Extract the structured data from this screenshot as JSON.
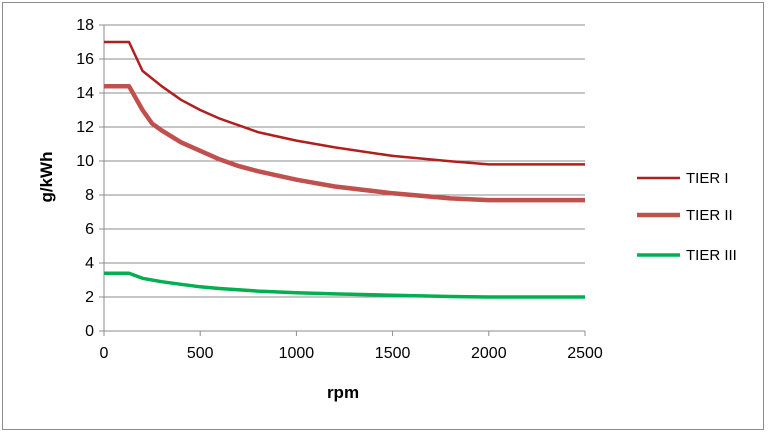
{
  "chart_data": {
    "type": "line",
    "title": "",
    "xlabel": "rpm",
    "ylabel": "g/kWh",
    "xlim": [
      0,
      2500
    ],
    "ylim": [
      0,
      18
    ],
    "xticks": [
      0,
      500,
      1000,
      1500,
      2000,
      2500
    ],
    "yticks": [
      0,
      2,
      4,
      6,
      8,
      10,
      12,
      14,
      16,
      18
    ],
    "grid": "horizontal",
    "legend": "right",
    "series": [
      {
        "name": "TIER I",
        "color": "#b01e1e",
        "width": "thin",
        "x": [
          0,
          130,
          200,
          300,
          400,
          500,
          600,
          700,
          800,
          1000,
          1200,
          1500,
          1800,
          2000,
          2500
        ],
        "y": [
          17.0,
          17.0,
          15.3,
          14.4,
          13.6,
          13.0,
          12.5,
          12.1,
          11.7,
          11.2,
          10.8,
          10.3,
          9.98,
          9.8,
          9.8
        ]
      },
      {
        "name": "TIER II",
        "color": "#c0504d",
        "width": "thick",
        "x": [
          0,
          130,
          200,
          250,
          300,
          400,
          500,
          600,
          700,
          800,
          1000,
          1200,
          1500,
          1800,
          2000,
          2500
        ],
        "y": [
          14.4,
          14.4,
          13.0,
          12.2,
          11.8,
          11.1,
          10.6,
          10.1,
          9.7,
          9.4,
          8.9,
          8.5,
          8.1,
          7.8,
          7.7,
          7.7
        ]
      },
      {
        "name": "TIER III",
        "color": "#00b050",
        "width": "medium",
        "x": [
          0,
          130,
          200,
          300,
          400,
          500,
          600,
          800,
          1000,
          1200,
          1500,
          1800,
          2000,
          2500
        ],
        "y": [
          3.4,
          3.4,
          3.1,
          2.9,
          2.75,
          2.6,
          2.5,
          2.35,
          2.25,
          2.18,
          2.1,
          2.03,
          2.0,
          2.0
        ]
      }
    ]
  }
}
